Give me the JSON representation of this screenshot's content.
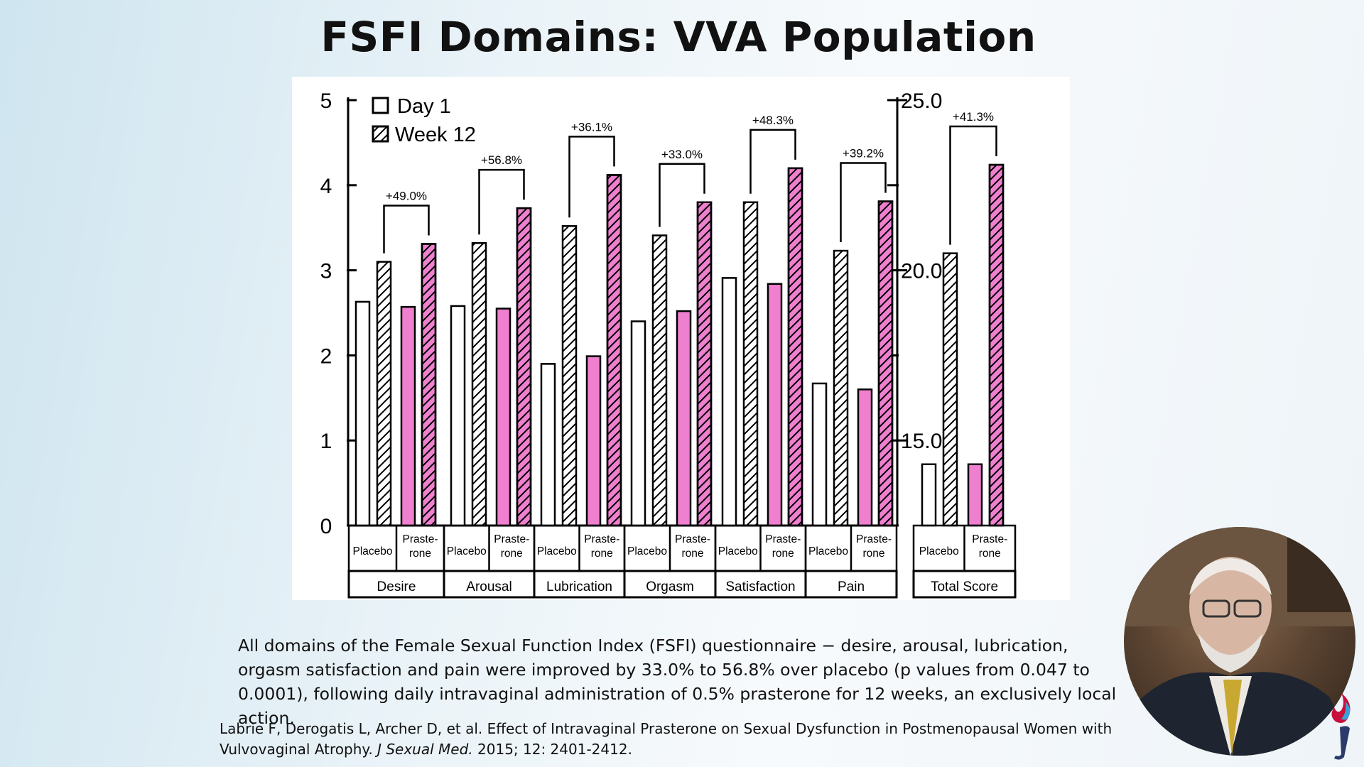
{
  "slide": {
    "title": "FSFI Domains:  VVA Population",
    "caption": "All domains of the Female Sexual Function Index (FSFI) questionnaire − desire, arousal, lubrication, orgasm satisfaction and pain were improved by 33.0% to 56.8% over placebo (p values from 0.047 to 0.0001), following daily intravaginal administration of 0.5% prasterone for 12 weeks, an exclusively local action.",
    "reference_prefix": "Labrie F, Derogatis L, Archer D, et al. Effect of Intravaginal Prasterone on Sexual Dysfunction in Postmenopausal Women with Vulvovaginal Atrophy. ",
    "reference_journal": "J Sexual Med.",
    "reference_suffix": " 2015; 12: 2401-2412."
  },
  "colors": {
    "pink": "#ef7fcf",
    "white": "#ffffff",
    "stroke": "#000000"
  },
  "chart_data": {
    "type": "bar",
    "title": "",
    "legend": {
      "placement": "top-left",
      "entries": [
        "Day 1",
        "Week 12"
      ]
    },
    "treatments": [
      "Placebo",
      "Praste-rone"
    ],
    "left_axis": {
      "ylim": [
        0,
        5
      ],
      "ticks": [
        "0",
        "1",
        "2",
        "3",
        "4",
        "5"
      ]
    },
    "right_axis": {
      "ylim": [
        12.5,
        25.0
      ],
      "ticks": [
        "15.0",
        "20.0",
        "25.0"
      ]
    },
    "groups": [
      {
        "name": "Desire",
        "axis": "left",
        "improvement": "+49.0%",
        "placebo": {
          "day1": 2.63,
          "week12": 3.1
        },
        "prasterone": {
          "day1": 2.57,
          "week12": 3.31
        }
      },
      {
        "name": "Arousal",
        "axis": "left",
        "improvement": "+56.8%",
        "placebo": {
          "day1": 2.58,
          "week12": 3.32
        },
        "prasterone": {
          "day1": 2.55,
          "week12": 3.73
        }
      },
      {
        "name": "Lubrication",
        "axis": "left",
        "improvement": "+36.1%",
        "placebo": {
          "day1": 1.9,
          "week12": 3.52
        },
        "prasterone": {
          "day1": 1.99,
          "week12": 4.12
        }
      },
      {
        "name": "Orgasm",
        "axis": "left",
        "improvement": "+33.0%",
        "placebo": {
          "day1": 2.4,
          "week12": 3.41
        },
        "prasterone": {
          "day1": 2.52,
          "week12": 3.8
        }
      },
      {
        "name": "Satisfaction",
        "axis": "left",
        "improvement": "+48.3%",
        "placebo": {
          "day1": 2.91,
          "week12": 3.8
        },
        "prasterone": {
          "day1": 2.84,
          "week12": 4.2
        }
      },
      {
        "name": "Pain",
        "axis": "left",
        "improvement": "+39.2%",
        "placebo": {
          "day1": 1.67,
          "week12": 3.23
        },
        "prasterone": {
          "day1": 1.6,
          "week12": 3.81
        }
      },
      {
        "name": "Total Score",
        "axis": "right",
        "improvement": "+41.3%",
        "placebo": {
          "day1": 14.3,
          "week12": 20.5
        },
        "prasterone": {
          "day1": 14.3,
          "week12": 23.1
        }
      }
    ]
  }
}
